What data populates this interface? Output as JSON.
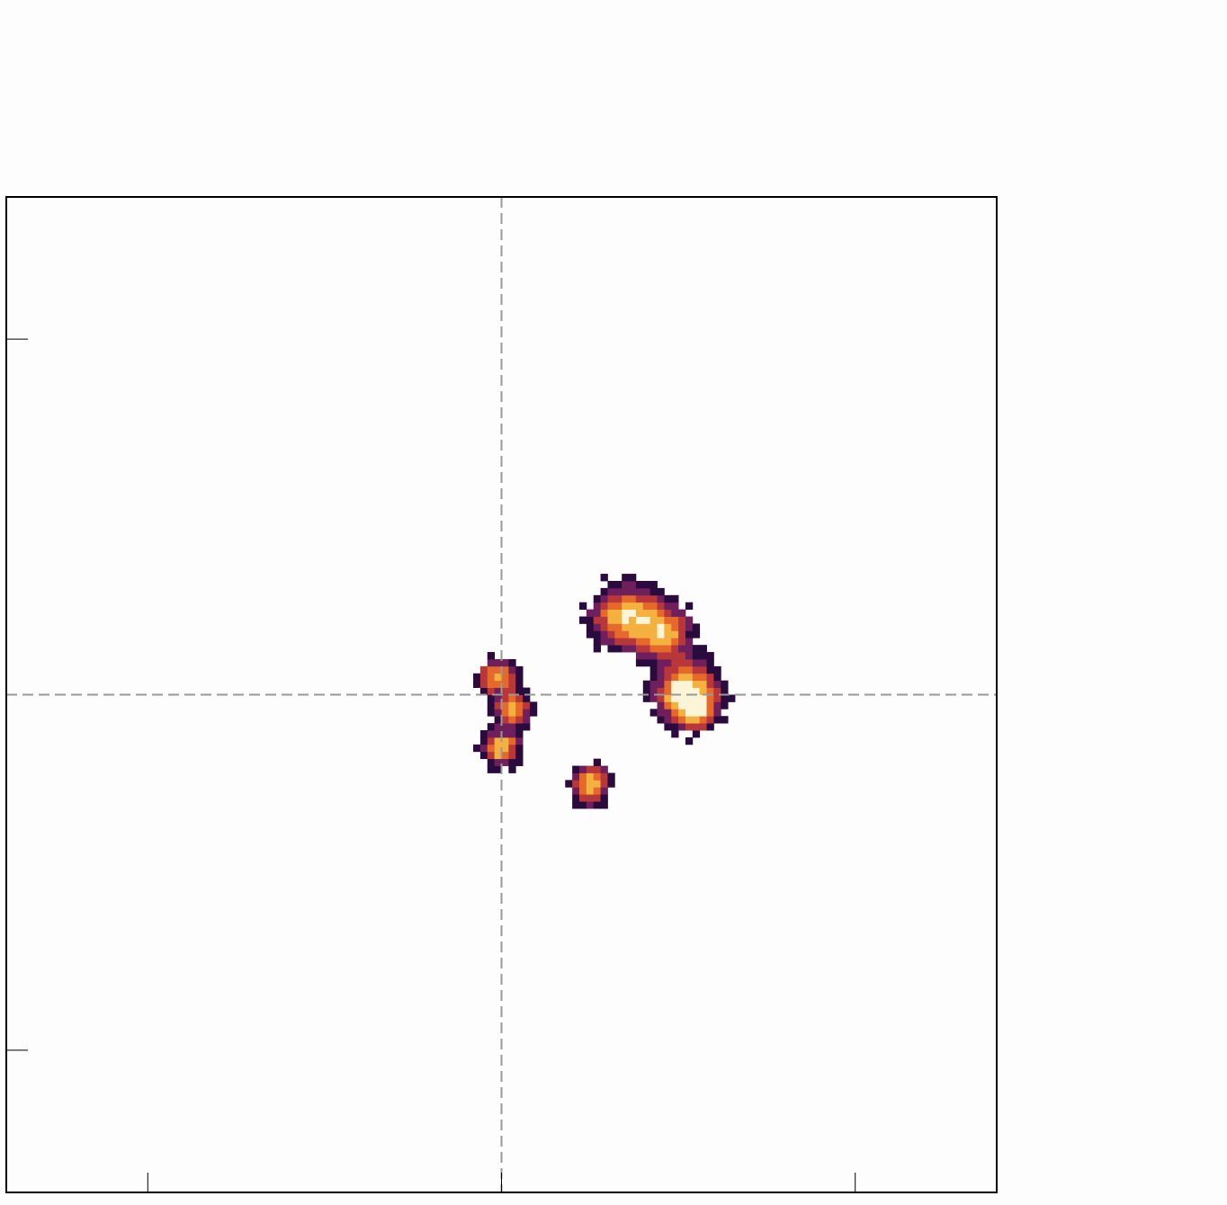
{
  "chart_data": {
    "type": "heatmap",
    "title": "",
    "xlabel": "",
    "ylabel": "",
    "xlim": [
      -7,
      7
    ],
    "ylim": [
      -7,
      7
    ],
    "xticks": [
      -5,
      0,
      5
    ],
    "yticks": [
      -5,
      5
    ],
    "grid": false,
    "reference_lines": {
      "x": 0,
      "y": 0,
      "style": "dashed",
      "color": "#999999"
    },
    "colormap": [
      "#fdfdfd",
      "#2a0b3d",
      "#6e1f5c",
      "#b8373b",
      "#e4692a",
      "#f4b13f",
      "#fbf4d6"
    ],
    "cell_size": 0.1,
    "blobs": [
      {
        "cx": 1.8,
        "cy": 1.1,
        "sx": 0.3,
        "sy": 0.25,
        "peak": 0.85
      },
      {
        "cx": 2.3,
        "cy": 0.85,
        "sx": 0.22,
        "sy": 0.22,
        "peak": 0.7
      },
      {
        "cx": 2.6,
        "cy": 0.05,
        "sx": 0.25,
        "sy": 0.25,
        "peak": 1.0
      },
      {
        "cx": 2.75,
        "cy": -0.2,
        "sx": 0.18,
        "sy": 0.18,
        "peak": 0.65
      },
      {
        "cx": -0.05,
        "cy": 0.25,
        "sx": 0.17,
        "sy": 0.14,
        "peak": 0.75
      },
      {
        "cx": 0.15,
        "cy": -0.2,
        "sx": 0.15,
        "sy": 0.15,
        "peak": 0.7
      },
      {
        "cx": 0.0,
        "cy": -0.75,
        "sx": 0.15,
        "sy": 0.15,
        "peak": 0.8
      },
      {
        "cx": 1.25,
        "cy": -1.25,
        "sx": 0.16,
        "sy": 0.16,
        "peak": 0.8
      }
    ]
  }
}
